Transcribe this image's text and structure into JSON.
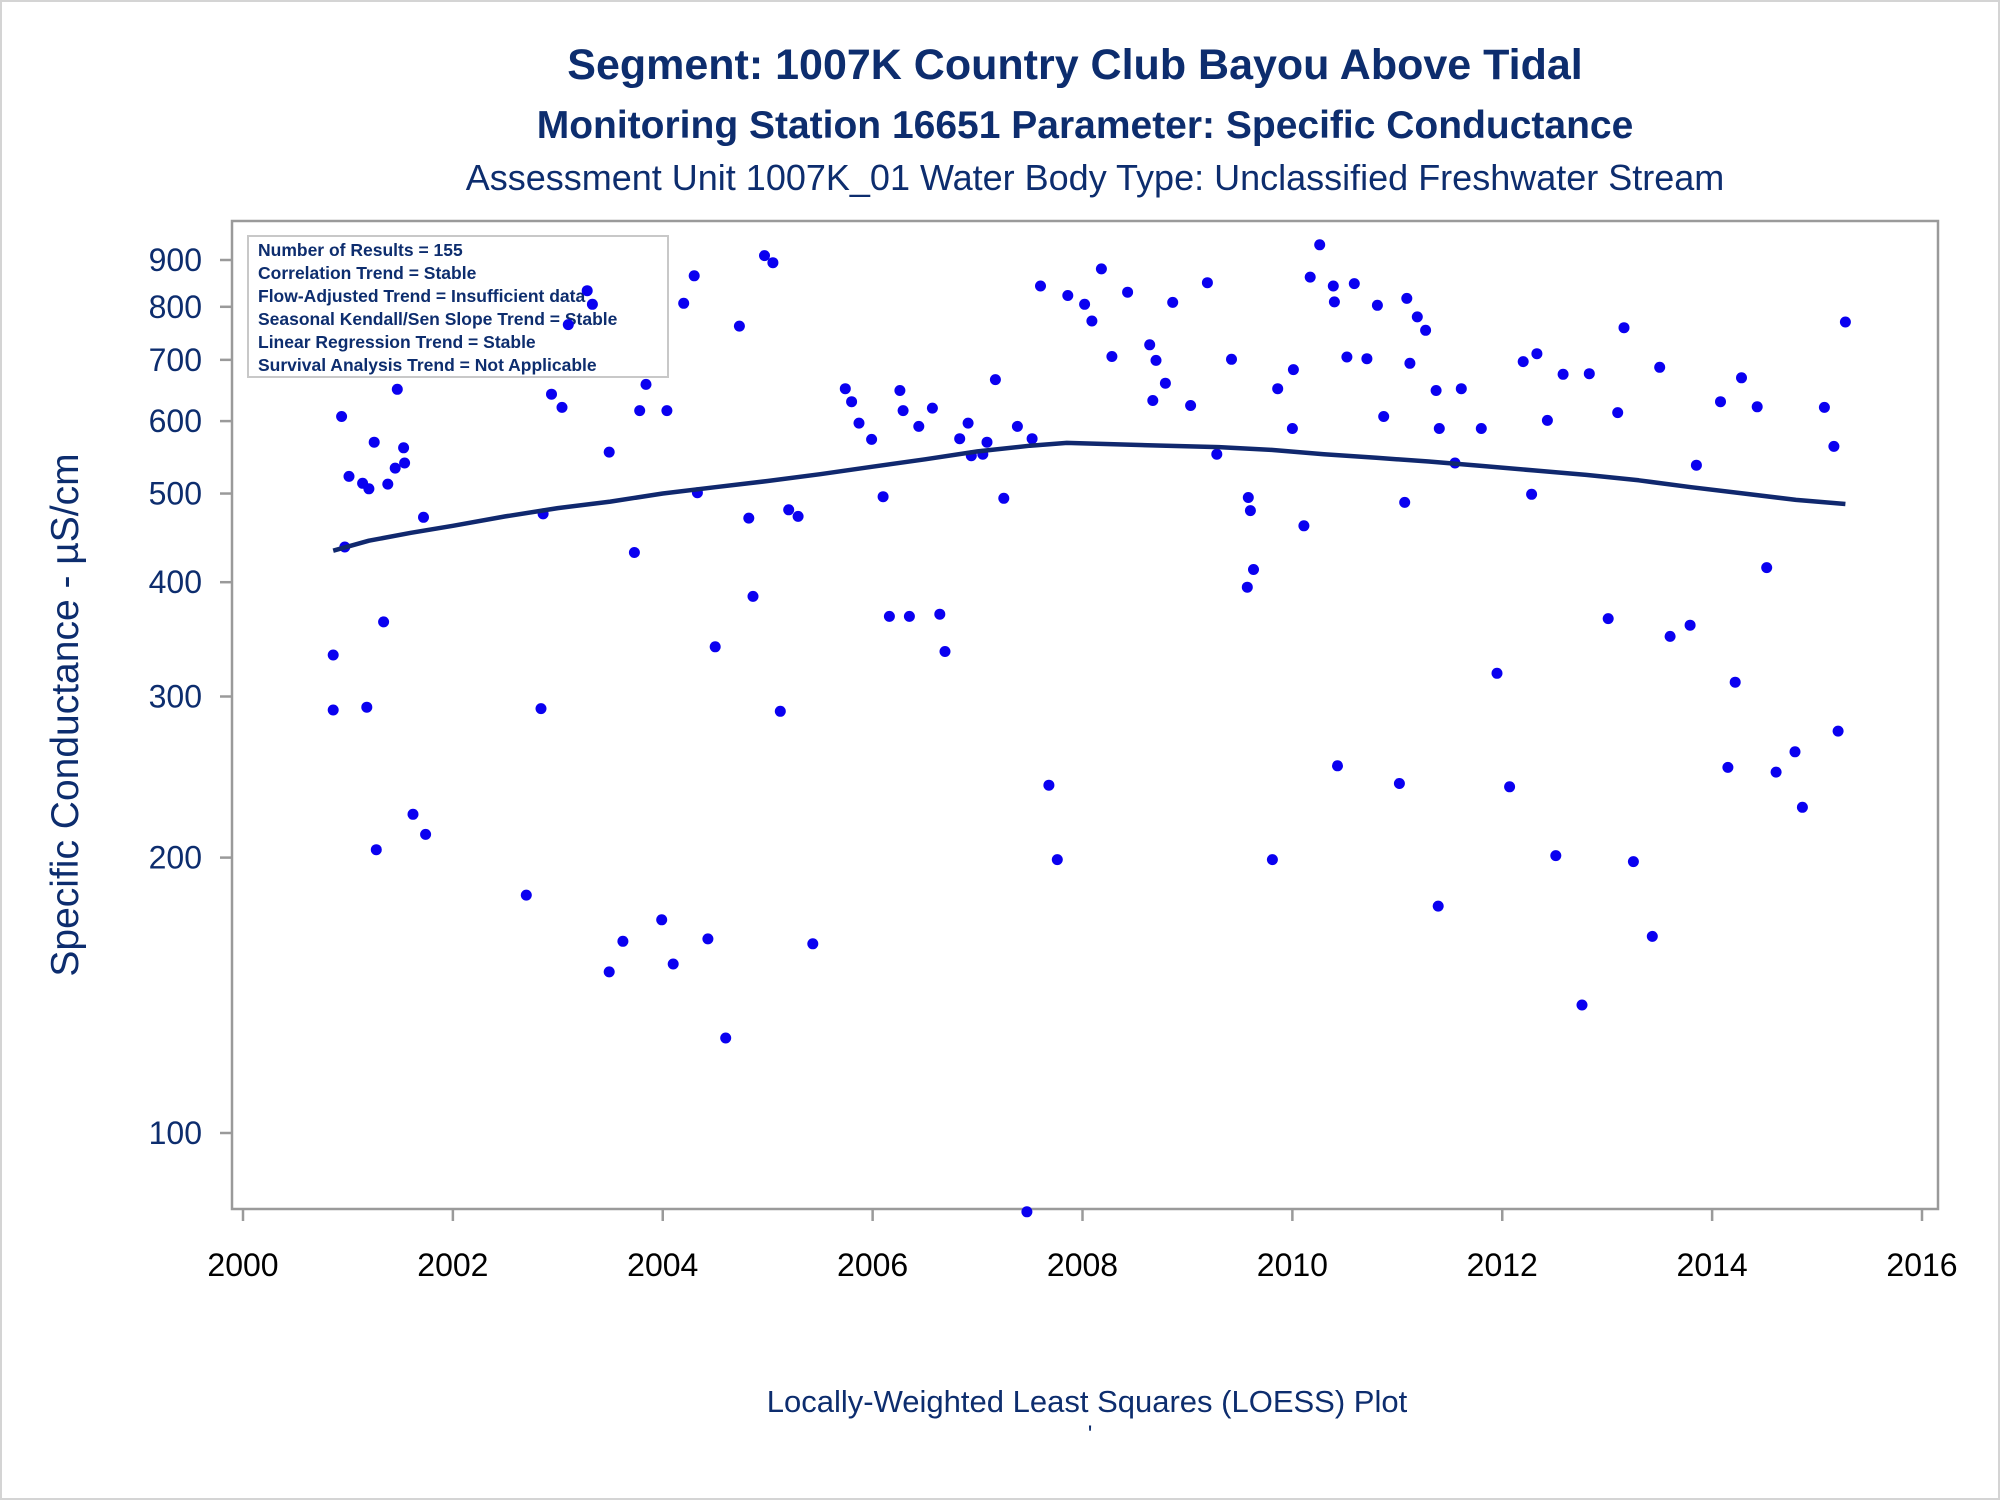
{
  "titles": {
    "line1": "Segment: 1007K  Country Club Bayou Above Tidal",
    "line2": "Monitoring Station 16651 Parameter: Specific Conductance",
    "line3": "Assessment Unit 1007K_01   Water Body Type: Unclassified Freshwater Stream"
  },
  "stats_box": [
    "Number of Results = 155",
    "Correlation Trend = Stable",
    "Flow-Adjusted Trend = Insufficient data",
    "Seasonal Kendall/Sen Slope Trend = Stable",
    "Linear Regression Trend = Stable",
    "Survival Analysis Trend = Not Applicable"
  ],
  "footer": {
    "caption": "Locally-Weighted Least Squares (LOESS) Plot",
    "mark": "'"
  },
  "colors": {
    "points": "#0a00f0",
    "loess": "#10286e",
    "text": "#0d2d6e",
    "axis": "#9a9a9a"
  },
  "chart_data": {
    "type": "scatter",
    "xlabel": "",
    "ylabel": "Specific Conductance -  µS/cm",
    "x_scale": "time (decimal year)",
    "y_scale": "log",
    "xlim": [
      2000,
      2016
    ],
    "ylim": [
      78,
      1000
    ],
    "x_ticks": [
      2000,
      2002,
      2004,
      2006,
      2008,
      2010,
      2012,
      2014,
      2016
    ],
    "y_ticks": [
      100,
      200,
      300,
      400,
      500,
      600,
      700,
      800,
      900
    ],
    "legend_placement": "top-left",
    "points": [
      [
        2000.86,
        333
      ],
      [
        2000.86,
        290
      ],
      [
        2000.94,
        607
      ],
      [
        2000.97,
        437
      ],
      [
        2001.01,
        522
      ],
      [
        2001.14,
        513
      ],
      [
        2001.18,
        292
      ],
      [
        2001.2,
        506
      ],
      [
        2001.25,
        569
      ],
      [
        2001.27,
        204
      ],
      [
        2001.34,
        362
      ],
      [
        2001.38,
        512
      ],
      [
        2001.45,
        533
      ],
      [
        2001.47,
        650
      ],
      [
        2001.53,
        561
      ],
      [
        2001.54,
        540
      ],
      [
        2001.62,
        223
      ],
      [
        2001.74,
        212
      ],
      [
        2001.72,
        471
      ],
      [
        2002.7,
        182
      ],
      [
        2002.84,
        291
      ],
      [
        2002.86,
        475
      ],
      [
        2002.94,
        642
      ],
      [
        2003.04,
        621
      ],
      [
        2003.1,
        765
      ],
      [
        2003.28,
        833
      ],
      [
        2003.33,
        805
      ],
      [
        2003.49,
        150
      ],
      [
        2003.49,
        555
      ],
      [
        2003.62,
        162
      ],
      [
        2003.73,
        431
      ],
      [
        2003.78,
        616
      ],
      [
        2003.84,
        658
      ],
      [
        2003.99,
        171
      ],
      [
        2004.04,
        616
      ],
      [
        2004.1,
        153
      ],
      [
        2004.2,
        807
      ],
      [
        2004.3,
        865
      ],
      [
        2004.33,
        501
      ],
      [
        2004.43,
        163
      ],
      [
        2004.5,
        340
      ],
      [
        2004.6,
        127
      ],
      [
        2004.73,
        762
      ],
      [
        2004.82,
        470
      ],
      [
        2004.86,
        386
      ],
      [
        2004.97,
        910
      ],
      [
        2005.05,
        894
      ],
      [
        2005.12,
        289
      ],
      [
        2005.2,
        480
      ],
      [
        2005.29,
        472
      ],
      [
        2005.43,
        161
      ],
      [
        2005.74,
        651
      ],
      [
        2005.8,
        630
      ],
      [
        2005.87,
        597
      ],
      [
        2005.99,
        573
      ],
      [
        2006.1,
        496
      ],
      [
        2006.16,
        367
      ],
      [
        2006.26,
        648
      ],
      [
        2006.29,
        616
      ],
      [
        2006.35,
        367
      ],
      [
        2006.44,
        592
      ],
      [
        2006.57,
        620
      ],
      [
        2006.64,
        369
      ],
      [
        2006.69,
        336
      ],
      [
        2006.83,
        574
      ],
      [
        2006.91,
        597
      ],
      [
        2006.94,
        550
      ],
      [
        2007.05,
        552
      ],
      [
        2007.09,
        569
      ],
      [
        2007.17,
        666
      ],
      [
        2007.25,
        494
      ],
      [
        2007.38,
        592
      ],
      [
        2007.47,
        82
      ],
      [
        2007.52,
        574
      ],
      [
        2007.6,
        843
      ],
      [
        2007.68,
        240
      ],
      [
        2007.76,
        199
      ],
      [
        2007.86,
        823
      ],
      [
        2008.02,
        805
      ],
      [
        2008.09,
        772
      ],
      [
        2008.18,
        880
      ],
      [
        2008.28,
        706
      ],
      [
        2008.43,
        830
      ],
      [
        2008.64,
        727
      ],
      [
        2008.67,
        632
      ],
      [
        2008.7,
        699
      ],
      [
        2008.79,
        660
      ],
      [
        2008.86,
        809
      ],
      [
        2009.03,
        624
      ],
      [
        2009.19,
        850
      ],
      [
        2009.28,
        552
      ],
      [
        2009.42,
        701
      ],
      [
        2009.57,
        395
      ],
      [
        2009.58,
        495
      ],
      [
        2009.6,
        479
      ],
      [
        2009.63,
        413
      ],
      [
        2009.81,
        199
      ],
      [
        2009.86,
        651
      ],
      [
        2010.0,
        589
      ],
      [
        2010.01,
        683
      ],
      [
        2010.11,
        461
      ],
      [
        2010.17,
        862
      ],
      [
        2010.26,
        935
      ],
      [
        2010.39,
        843
      ],
      [
        2010.4,
        810
      ],
      [
        2010.43,
        252
      ],
      [
        2010.52,
        705
      ],
      [
        2010.59,
        848
      ],
      [
        2010.71,
        702
      ],
      [
        2010.81,
        803
      ],
      [
        2010.87,
        607
      ],
      [
        2011.02,
        241
      ],
      [
        2011.07,
        489
      ],
      [
        2011.09,
        817
      ],
      [
        2011.12,
        694
      ],
      [
        2011.19,
        780
      ],
      [
        2011.27,
        754
      ],
      [
        2011.37,
        648
      ],
      [
        2011.39,
        177
      ],
      [
        2011.4,
        589
      ],
      [
        2011.55,
        540
      ],
      [
        2011.61,
        651
      ],
      [
        2011.8,
        589
      ],
      [
        2011.95,
        318
      ],
      [
        2012.07,
        239
      ],
      [
        2012.2,
        697
      ],
      [
        2012.28,
        499
      ],
      [
        2012.33,
        711
      ],
      [
        2012.43,
        601
      ],
      [
        2012.51,
        201
      ],
      [
        2012.58,
        675
      ],
      [
        2012.76,
        138
      ],
      [
        2012.83,
        676
      ],
      [
        2013.01,
        365
      ],
      [
        2013.1,
        613
      ],
      [
        2013.16,
        759
      ],
      [
        2013.25,
        198
      ],
      [
        2013.43,
        164
      ],
      [
        2013.5,
        687
      ],
      [
        2013.6,
        349
      ],
      [
        2013.79,
        359
      ],
      [
        2013.85,
        537
      ],
      [
        2014.08,
        630
      ],
      [
        2014.15,
        251
      ],
      [
        2014.22,
        311
      ],
      [
        2014.28,
        669
      ],
      [
        2014.43,
        622
      ],
      [
        2014.52,
        415
      ],
      [
        2014.61,
        248
      ],
      [
        2014.79,
        261
      ],
      [
        2014.86,
        227
      ],
      [
        2015.07,
        621
      ],
      [
        2015.16,
        563
      ],
      [
        2015.2,
        275
      ],
      [
        2015.27,
        770
      ]
    ],
    "loess": [
      [
        2000.86,
        433
      ],
      [
        2001.2,
        444
      ],
      [
        2001.6,
        453
      ],
      [
        2002.0,
        461
      ],
      [
        2002.5,
        472
      ],
      [
        2003.0,
        482
      ],
      [
        2003.5,
        490
      ],
      [
        2004.0,
        500
      ],
      [
        2004.5,
        508
      ],
      [
        2005.0,
        516
      ],
      [
        2005.5,
        525
      ],
      [
        2006.0,
        535
      ],
      [
        2006.5,
        545
      ],
      [
        2007.0,
        556
      ],
      [
        2007.5,
        564
      ],
      [
        2007.85,
        568
      ],
      [
        2008.3,
        566
      ],
      [
        2008.8,
        564
      ],
      [
        2009.3,
        562
      ],
      [
        2009.8,
        558
      ],
      [
        2010.3,
        552
      ],
      [
        2010.8,
        547
      ],
      [
        2011.3,
        542
      ],
      [
        2011.8,
        536
      ],
      [
        2012.3,
        530
      ],
      [
        2012.8,
        524
      ],
      [
        2013.3,
        517
      ],
      [
        2013.8,
        508
      ],
      [
        2014.3,
        500
      ],
      [
        2014.8,
        492
      ],
      [
        2015.27,
        487
      ]
    ]
  }
}
